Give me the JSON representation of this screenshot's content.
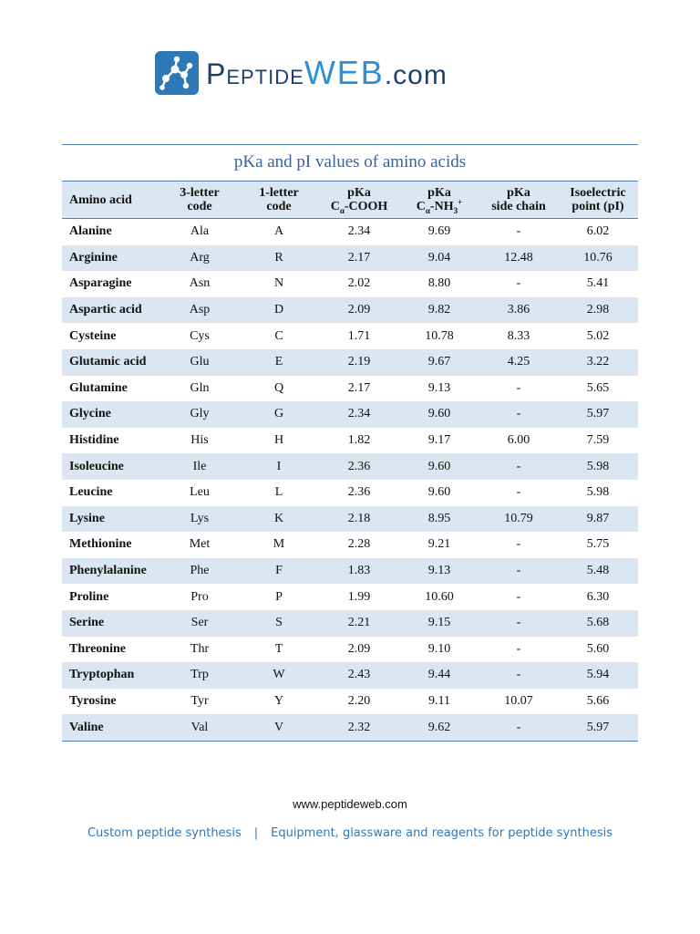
{
  "logo": {
    "brand_main": "Peptide",
    "brand_accent": "WEB",
    "brand_suffix": ".com"
  },
  "colors": {
    "accent_blue": "#2f78b7",
    "dark_navy": "#1d3f6e",
    "row_band": "#dce5f2",
    "rule": "#4f81bd"
  },
  "table": {
    "title": "pKa and pI values of amino acids",
    "headers": {
      "name": "Amino acid",
      "three_letter_line1": "3-letter",
      "three_letter_line2": "code",
      "one_letter_line1": "1-letter",
      "one_letter_line2": "code",
      "pka_cooh_line1": "pKa",
      "pka_cooh_line2_prefix": "C",
      "pka_cooh_sub": "α",
      "pka_cooh_line2_suffix": "-COOH",
      "pka_nh3_line1": "pKa",
      "pka_nh3_line2_prefix": "C",
      "pka_nh3_sub": "α",
      "pka_nh3_line2_mid": "-NH",
      "pka_nh3_sub2": "3",
      "pka_nh3_sup": "+",
      "pka_side_line1": "pKa",
      "pka_side_line2": "side chain",
      "pi_line1": "Isoelectric",
      "pi_line2": "point (pI)"
    },
    "rows": [
      {
        "name": "Alanine",
        "three": "Ala",
        "one": "A",
        "cooh": "2.34",
        "nh3": "9.69",
        "side": "-",
        "pi": "6.02"
      },
      {
        "name": "Arginine",
        "three": "Arg",
        "one": "R",
        "cooh": "2.17",
        "nh3": "9.04",
        "side": "12.48",
        "pi": "10.76"
      },
      {
        "name": "Asparagine",
        "three": "Asn",
        "one": "N",
        "cooh": "2.02",
        "nh3": "8.80",
        "side": "-",
        "pi": "5.41"
      },
      {
        "name": "Aspartic acid",
        "three": "Asp",
        "one": "D",
        "cooh": "2.09",
        "nh3": "9.82",
        "side": "3.86",
        "pi": "2.98"
      },
      {
        "name": "Cysteine",
        "three": "Cys",
        "one": "C",
        "cooh": "1.71",
        "nh3": "10.78",
        "side": "8.33",
        "pi": "5.02"
      },
      {
        "name": "Glutamic acid",
        "three": "Glu",
        "one": "E",
        "cooh": "2.19",
        "nh3": "9.67",
        "side": "4.25",
        "pi": "3.22"
      },
      {
        "name": "Glutamine",
        "three": "Gln",
        "one": "Q",
        "cooh": "2.17",
        "nh3": "9.13",
        "side": "-",
        "pi": "5.65"
      },
      {
        "name": "Glycine",
        "three": "Gly",
        "one": "G",
        "cooh": "2.34",
        "nh3": "9.60",
        "side": "-",
        "pi": "5.97"
      },
      {
        "name": "Histidine",
        "three": "His",
        "one": "H",
        "cooh": "1.82",
        "nh3": "9.17",
        "side": "6.00",
        "pi": "7.59"
      },
      {
        "name": "Isoleucine",
        "three": "Ile",
        "one": "I",
        "cooh": "2.36",
        "nh3": "9.60",
        "side": "-",
        "pi": "5.98"
      },
      {
        "name": "Leucine",
        "three": "Leu",
        "one": "L",
        "cooh": "2.36",
        "nh3": "9.60",
        "side": "-",
        "pi": "5.98"
      },
      {
        "name": "Lysine",
        "three": "Lys",
        "one": "K",
        "cooh": "2.18",
        "nh3": "8.95",
        "side": "10.79",
        "pi": "9.87"
      },
      {
        "name": "Methionine",
        "three": "Met",
        "one": "M",
        "cooh": "2.28",
        "nh3": "9.21",
        "side": "-",
        "pi": "5.75"
      },
      {
        "name": "Phenylalanine",
        "three": "Phe",
        "one": "F",
        "cooh": "1.83",
        "nh3": "9.13",
        "side": "-",
        "pi": "5.48"
      },
      {
        "name": "Proline",
        "three": "Pro",
        "one": "P",
        "cooh": "1.99",
        "nh3": "10.60",
        "side": "-",
        "pi": "6.30"
      },
      {
        "name": "Serine",
        "three": "Ser",
        "one": "S",
        "cooh": "2.21",
        "nh3": "9.15",
        "side": "-",
        "pi": "5.68"
      },
      {
        "name": "Threonine",
        "three": "Thr",
        "one": "T",
        "cooh": "2.09",
        "nh3": "9.10",
        "side": "-",
        "pi": "5.60"
      },
      {
        "name": "Tryptophan",
        "three": "Trp",
        "one": "W",
        "cooh": "2.43",
        "nh3": "9.44",
        "side": "-",
        "pi": "5.94"
      },
      {
        "name": "Tyrosine",
        "three": "Tyr",
        "one": "Y",
        "cooh": "2.20",
        "nh3": "9.11",
        "side": "10.07",
        "pi": "5.66"
      },
      {
        "name": "Valine",
        "three": "Val",
        "one": "V",
        "cooh": "2.32",
        "nh3": "9.62",
        "side": "-",
        "pi": "5.97"
      }
    ]
  },
  "footer": {
    "url": "www.peptideweb.com",
    "link_synthesis": "Custom peptide synthesis",
    "separator": "|",
    "link_equipment": "Equipment, glassware and reagents for peptide synthesis"
  }
}
